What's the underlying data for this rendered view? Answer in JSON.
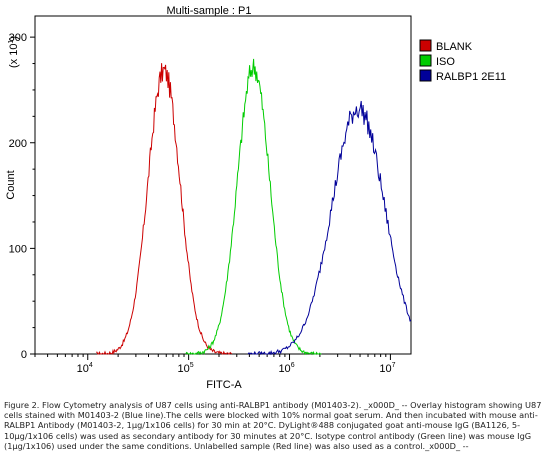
{
  "chart_data": {
    "type": "line",
    "title": "Multi-sample : P1",
    "xlabel": "FITC-A",
    "ylabel": "Count",
    "y_multiplier": "(x 10",
    "y_multiplier_exp": "1",
    "y_multiplier_close": ")",
    "x_scale": "log",
    "xlim": [
      3000,
      16000000
    ],
    "ylim": [
      0,
      320
    ],
    "x_ticks": [
      {
        "base": "10",
        "exp": "4",
        "value": 10000
      },
      {
        "base": "10",
        "exp": "5",
        "value": 100000
      },
      {
        "base": "10",
        "exp": "6",
        "value": 1000000
      },
      {
        "base": "10",
        "exp": "7",
        "value": 10000000
      }
    ],
    "y_ticks": [
      {
        "label": "0",
        "value": 0
      },
      {
        "label": "100",
        "value": 100
      },
      {
        "label": "200",
        "value": 200
      },
      {
        "label": "300",
        "value": 300
      }
    ],
    "legend_position": "right",
    "series": [
      {
        "name": "BLANK",
        "color": "#cc0000",
        "peak_x": 57000,
        "peak_y": 268,
        "log_width": 0.16
      },
      {
        "name": "ISO",
        "color": "#00cc00",
        "peak_x": 440000,
        "peak_y": 272,
        "log_width": 0.16
      },
      {
        "name": "RALBP1 2E11",
        "color": "#000099",
        "peak_x": 4800000,
        "peak_y": 233,
        "log_width": 0.26
      }
    ]
  },
  "caption": "Figure 2. Flow Cytometry analysis of U87 cells using anti-RALBP1 antibody (M01403-2). _x000D_ -- Overlay histogram showing U87 cells stained with M01403-2 (Blue line).The cells were blocked with 10% normal goat serum. And then incubated with mouse anti-RALBP1 Antibody (M01403-2, 1µg/1x106 cells) for 30 min at 20°C. DyLight®488 conjugated goat anti-mouse IgG (BA1126, 5-10µg/1x106 cells) was used as secondary antibody for 30 minutes at 20°C. Isotype control antibody (Green line) was mouse IgG (1µg/1x106) used under the same conditions. Unlabelled sample (Red line) was also used as a control._x000D_ --"
}
